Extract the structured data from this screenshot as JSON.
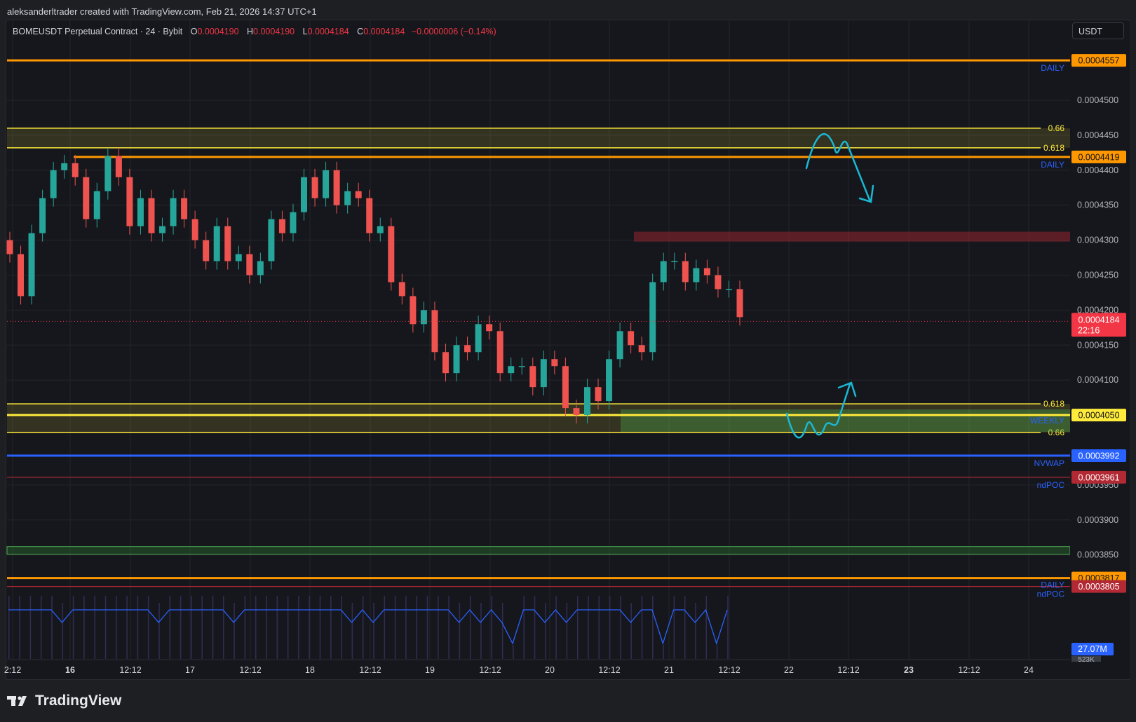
{
  "credit": "aleksanderltrader created with TradingView.com, Feb 21, 2026 14:37 UTC+1",
  "legend": {
    "symbol": "BOMEUSDT Perpetual Contract · 24 · Bybit",
    "o_label": "O",
    "o_value": "0.0004190",
    "h_label": "H",
    "h_value": "0.0004190",
    "l_label": "L",
    "l_value": "0.0004184",
    "c_label": "C",
    "c_value": "0.0004184",
    "change": "−0.0000006 (−0.14%)"
  },
  "currency_button": "USDT",
  "brand": "TradingView",
  "chart_data": {
    "type": "candlestick",
    "title": "BOMEUSDT Perpetual Contract · 24 · Bybit",
    "ylim": [
      0.000371,
      0.0004596
    ],
    "y_ticks": [
      "0.0004500",
      "0.0004450",
      "0.0004400",
      "0.0004350",
      "0.0004300",
      "0.0004250",
      "0.0004200",
      "0.0004150",
      "0.0004100",
      "0.0003950",
      "0.0003900",
      "0.0003850"
    ],
    "x_ticks": [
      "2:12",
      "16",
      "12:12",
      "17",
      "12:12",
      "18",
      "12:12",
      "19",
      "12:12",
      "20",
      "12:12",
      "21",
      "12:12",
      "22",
      "12:12",
      "23",
      "12:12",
      "24"
    ],
    "bold_x_ticks": [
      "16",
      "23"
    ],
    "last_price": {
      "value": 0.0004184,
      "label": "0.0004184",
      "countdown": "22:16",
      "color": "#f23645"
    },
    "horizontal_lines": [
      {
        "price": 0.0004557,
        "label": "0.0004557",
        "tag": "DAILY",
        "color": "#ff9800",
        "tag_color": "#2962ff"
      },
      {
        "price": 0.0004419,
        "label": "0.0004419",
        "tag": "DAILY",
        "color": "#ff9800",
        "tag_color": "#2962ff"
      },
      {
        "price": 0.000405,
        "label": "0.0004050",
        "tag": "WEEKLY",
        "color": "#ffeb3b",
        "tag_color": "#2962ff"
      },
      {
        "price": 0.0003992,
        "label": "0.0003992",
        "tag": "NVWAP",
        "color": "#2962ff",
        "tag_color": "#2962ff"
      },
      {
        "price": 0.0003961,
        "label": "0.0003961",
        "tag": "ndPOC",
        "color": "#b22833",
        "tag_color": "#2962ff"
      },
      {
        "price": 0.0003817,
        "label": "0.0003817",
        "tag": "DAILY",
        "color": "#ff9800",
        "tag_color": "#2962ff"
      },
      {
        "price": 0.0003805,
        "label": "0.0003805",
        "tag": "ndPOC",
        "color": "#b22833",
        "tag_color": "#2962ff"
      }
    ],
    "fib_zones": [
      {
        "top": 0.000446,
        "bottom": 0.0004432,
        "top_label": "0.66",
        "bottom_label": "0.618"
      },
      {
        "top": 0.0004066,
        "bottom": 0.0004025,
        "top_label": "0.618",
        "bottom_label": "0.66"
      }
    ],
    "supply_box": {
      "top": 0.0004312,
      "bottom": 0.0004298
    },
    "demand_box": {
      "top": 0.0004058,
      "bottom": 0.0004026
    },
    "green_band": {
      "top": 0.0003862,
      "bottom": 0.0003851
    },
    "volume": {
      "last_label": "27.07M",
      "ma_label": "523K",
      "color": "#2962ff"
    },
    "annotations": [
      {
        "shape": "zigzag-down-arrow",
        "zone": "resistance",
        "color": "#1ab8d4"
      },
      {
        "shape": "zigzag-up-arrow",
        "zone": "support",
        "color": "#1ab8d4"
      }
    ],
    "candles": [
      [
        0.00043,
        0.000428
      ],
      [
        0.000428,
        0.000422
      ],
      [
        0.000422,
        0.000431
      ],
      [
        0.000431,
        0.000436
      ],
      [
        0.000436,
        0.00044
      ],
      [
        0.00044,
        0.000441
      ],
      [
        0.000441,
        0.000439
      ],
      [
        0.000439,
        0.000433
      ],
      [
        0.000433,
        0.000437
      ],
      [
        0.000437,
        0.000442
      ],
      [
        0.000442,
        0.000439
      ],
      [
        0.000439,
        0.000432
      ],
      [
        0.000432,
        0.000436
      ],
      [
        0.000436,
        0.000431
      ],
      [
        0.000431,
        0.000432
      ],
      [
        0.000432,
        0.000436
      ],
      [
        0.000436,
        0.000433
      ],
      [
        0.000433,
        0.00043
      ],
      [
        0.00043,
        0.000427
      ],
      [
        0.000427,
        0.000432
      ],
      [
        0.000432,
        0.000427
      ],
      [
        0.000427,
        0.000428
      ],
      [
        0.000428,
        0.000425
      ],
      [
        0.000425,
        0.000427
      ],
      [
        0.000427,
        0.000433
      ],
      [
        0.000433,
        0.000431
      ],
      [
        0.000431,
        0.000434
      ],
      [
        0.000434,
        0.000439
      ],
      [
        0.000439,
        0.000436
      ],
      [
        0.000436,
        0.00044
      ],
      [
        0.00044,
        0.000435
      ],
      [
        0.000435,
        0.000437
      ],
      [
        0.000437,
        0.000436
      ],
      [
        0.000436,
        0.000431
      ],
      [
        0.000431,
        0.000432
      ],
      [
        0.000432,
        0.000424
      ],
      [
        0.000424,
        0.000422
      ],
      [
        0.000422,
        0.000418
      ],
      [
        0.000418,
        0.00042
      ],
      [
        0.00042,
        0.000414
      ],
      [
        0.000414,
        0.000411
      ],
      [
        0.000411,
        0.000415
      ],
      [
        0.000415,
        0.000414
      ],
      [
        0.000414,
        0.000418
      ],
      [
        0.000418,
        0.000417
      ],
      [
        0.000417,
        0.000411
      ],
      [
        0.000411,
        0.000412
      ],
      [
        0.000412,
        0.000412
      ],
      [
        0.000412,
        0.000409
      ],
      [
        0.000409,
        0.000413
      ],
      [
        0.000413,
        0.000412
      ],
      [
        0.000412,
        0.000406
      ],
      [
        0.000406,
        0.000405
      ],
      [
        0.000405,
        0.000409
      ],
      [
        0.000409,
        0.000407
      ],
      [
        0.000407,
        0.000413
      ],
      [
        0.000413,
        0.000417
      ],
      [
        0.000417,
        0.000415
      ],
      [
        0.000415,
        0.000414
      ],
      [
        0.000414,
        0.000424
      ],
      [
        0.000424,
        0.000427
      ],
      [
        0.000427,
        0.000427
      ],
      [
        0.000427,
        0.000424
      ],
      [
        0.000424,
        0.000426
      ],
      [
        0.000426,
        0.000425
      ],
      [
        0.000425,
        0.000423
      ],
      [
        0.000423,
        0.000423
      ],
      [
        0.000423,
        0.000419
      ]
    ]
  }
}
